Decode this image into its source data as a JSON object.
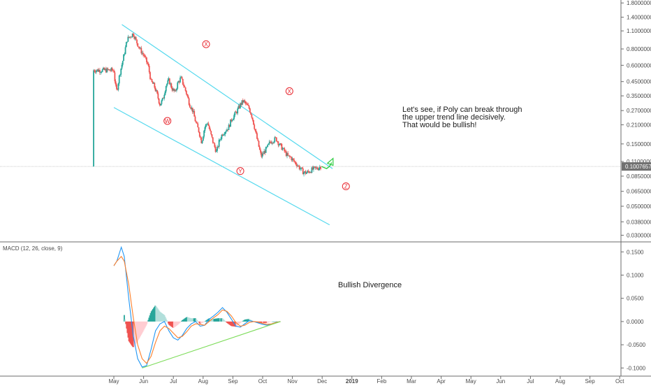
{
  "chart_data": [
    {
      "type": "candlestick",
      "panel": "price",
      "y_scale": "log",
      "ylim": [
        0.027,
        1.85
      ],
      "price_ticks": [
        "1.80000000",
        "1.40000000",
        "1.10000000",
        "0.80000000",
        "0.60000000",
        "0.45000000",
        "0.35000000",
        "0.27000000",
        "0.21000000",
        "0.15000000",
        "0.11000000",
        "0.08500000",
        "0.06500000",
        "0.05000000",
        "0.03800000",
        "0.03000000"
      ],
      "price_tick_values": [
        1.8,
        1.4,
        1.1,
        0.8,
        0.6,
        0.45,
        0.35,
        0.27,
        0.21,
        0.15,
        0.11,
        0.085,
        0.065,
        0.05,
        0.038,
        0.03
      ],
      "last_price": {
        "label": "0.10076572",
        "value": 0.1008
      },
      "months": [
        "May",
        "Jun",
        "Jul",
        "Aug",
        "Sep",
        "Oct",
        "Nov",
        "Dec",
        "2019",
        "Feb",
        "Mar",
        "Apr",
        "May",
        "Jun",
        "Jul",
        "Aug",
        "Sep",
        "Oct"
      ],
      "bullish_color": "#26a69a",
      "bearish_color": "#ef5350",
      "price_path": [
        [
          0.0,
          0.55
        ],
        [
          0.05,
          0.42
        ],
        [
          0.1,
          0.38
        ],
        [
          0.2,
          0.52
        ],
        [
          0.3,
          0.65
        ],
        [
          0.45,
          0.95
        ],
        [
          0.55,
          1.0
        ],
        [
          0.65,
          1.05
        ],
        [
          0.75,
          0.92
        ],
        [
          0.9,
          0.78
        ],
        [
          1.0,
          0.72
        ],
        [
          1.15,
          0.6
        ],
        [
          1.25,
          0.45
        ],
        [
          1.35,
          0.42
        ],
        [
          1.45,
          0.36
        ],
        [
          1.55,
          0.3
        ],
        [
          1.65,
          0.33
        ],
        [
          1.75,
          0.42
        ],
        [
          1.85,
          0.46
        ],
        [
          1.95,
          0.4
        ],
        [
          2.05,
          0.37
        ],
        [
          2.15,
          0.44
        ],
        [
          2.25,
          0.48
        ],
        [
          2.35,
          0.42
        ],
        [
          2.45,
          0.36
        ],
        [
          2.55,
          0.3
        ],
        [
          2.65,
          0.27
        ],
        [
          2.75,
          0.22
        ],
        [
          2.85,
          0.19
        ],
        [
          2.95,
          0.155
        ],
        [
          3.05,
          0.2
        ],
        [
          3.15,
          0.22
        ],
        [
          3.25,
          0.18
        ],
        [
          3.35,
          0.15
        ],
        [
          3.45,
          0.13
        ],
        [
          3.55,
          0.16
        ],
        [
          3.65,
          0.18
        ],
        [
          3.75,
          0.19
        ],
        [
          3.85,
          0.2
        ],
        [
          3.95,
          0.23
        ],
        [
          4.05,
          0.25
        ],
        [
          4.15,
          0.27
        ],
        [
          4.25,
          0.3
        ],
        [
          4.35,
          0.32
        ],
        [
          4.45,
          0.3
        ],
        [
          4.55,
          0.28
        ],
        [
          4.65,
          0.24
        ],
        [
          4.75,
          0.19
        ],
        [
          4.85,
          0.15
        ],
        [
          4.95,
          0.12
        ],
        [
          5.05,
          0.13
        ],
        [
          5.15,
          0.14
        ],
        [
          5.25,
          0.155
        ],
        [
          5.35,
          0.16
        ],
        [
          5.45,
          0.165
        ],
        [
          5.55,
          0.15
        ],
        [
          5.65,
          0.14
        ],
        [
          5.75,
          0.13
        ],
        [
          5.85,
          0.12
        ],
        [
          5.95,
          0.118
        ],
        [
          6.05,
          0.11
        ],
        [
          6.15,
          0.105
        ],
        [
          6.25,
          0.098
        ],
        [
          6.35,
          0.092
        ],
        [
          6.45,
          0.09
        ],
        [
          6.55,
          0.092
        ],
        [
          6.65,
          0.095
        ],
        [
          6.75,
          0.097
        ],
        [
          6.85,
          0.098
        ],
        [
          6.95,
          0.1008
        ]
      ],
      "projection": [
        [
          6.98,
          0.1008
        ],
        [
          7.15,
          0.097
        ],
        [
          7.25,
          0.101
        ],
        [
          7.32,
          0.108
        ]
      ],
      "channel_upper": [
        [
          0.27,
          1.23
        ],
        [
          7.35,
          0.097
        ]
      ],
      "channel_lower": [
        [
          0.0,
          0.285
        ],
        [
          7.25,
          0.036
        ]
      ],
      "wave_labels": [
        {
          "label": "W",
          "x": 1.8,
          "y": 0.225
        },
        {
          "label": "X",
          "x": 3.1,
          "y": 0.87
        },
        {
          "label": "Y",
          "x": 4.25,
          "y": 0.093
        },
        {
          "label": "X",
          "x": 5.9,
          "y": 0.38
        },
        {
          "label": "Z",
          "x": 7.8,
          "y": 0.071
        }
      ],
      "annotation": [
        "Let's see, if Poly can break through",
        "the upper trend line decisively.",
        "That would be bullish!"
      ]
    },
    {
      "type": "line",
      "panel": "indicator",
      "title": "MACD (12, 26, close, 9)",
      "ylim": [
        -0.11,
        0.17
      ],
      "y_ticks": [
        "0.1500",
        "0.1000",
        "0.0500",
        "0.0000",
        "-0.0500",
        "-0.1000"
      ],
      "y_tick_values": [
        0.15,
        0.1,
        0.05,
        0,
        -0.05,
        -0.1
      ],
      "series": [
        {
          "color": "#2196f3",
          "values": [
            [
              0.0,
              0.12
            ],
            [
              0.1,
              0.13
            ],
            [
              0.25,
              0.16
            ],
            [
              0.35,
              0.14
            ],
            [
              0.5,
              0.05
            ],
            [
              0.65,
              -0.03
            ],
            [
              0.8,
              -0.08
            ],
            [
              0.95,
              -0.098
            ],
            [
              1.1,
              -0.095
            ],
            [
              1.25,
              -0.06
            ],
            [
              1.4,
              -0.02
            ],
            [
              1.55,
              -0.005
            ],
            [
              1.7,
              0.0
            ],
            [
              1.85,
              -0.02
            ],
            [
              2.0,
              -0.035
            ],
            [
              2.15,
              -0.04
            ],
            [
              2.3,
              -0.03
            ],
            [
              2.45,
              -0.015
            ],
            [
              2.6,
              -0.005
            ],
            [
              2.75,
              0.0
            ],
            [
              2.9,
              -0.01
            ],
            [
              3.05,
              -0.008
            ],
            [
              3.2,
              0.005
            ],
            [
              3.35,
              0.012
            ],
            [
              3.5,
              0.02
            ],
            [
              3.65,
              0.03
            ],
            [
              3.8,
              0.02
            ],
            [
              3.95,
              0.005
            ],
            [
              4.1,
              -0.01
            ],
            [
              4.25,
              -0.012
            ],
            [
              4.4,
              -0.005
            ],
            [
              4.55,
              0.002
            ],
            [
              4.7,
              0.0
            ],
            [
              4.85,
              -0.003
            ],
            [
              5.0,
              -0.006
            ],
            [
              5.15,
              -0.008
            ],
            [
              5.3,
              -0.005
            ],
            [
              5.45,
              -0.002
            ],
            [
              5.6,
              0.0
            ]
          ]
        },
        {
          "color": "#ff7f2a",
          "values": [
            [
              0.0,
              0.12
            ],
            [
              0.1,
              0.13
            ],
            [
              0.25,
              0.14
            ],
            [
              0.35,
              0.13
            ],
            [
              0.5,
              0.08
            ],
            [
              0.65,
              0.01
            ],
            [
              0.8,
              -0.05
            ],
            [
              0.95,
              -0.08
            ],
            [
              1.1,
              -0.09
            ],
            [
              1.25,
              -0.075
            ],
            [
              1.4,
              -0.045
            ],
            [
              1.55,
              -0.02
            ],
            [
              1.7,
              -0.01
            ],
            [
              1.85,
              -0.015
            ],
            [
              2.0,
              -0.025
            ],
            [
              2.15,
              -0.035
            ],
            [
              2.3,
              -0.032
            ],
            [
              2.45,
              -0.022
            ],
            [
              2.6,
              -0.01
            ],
            [
              2.75,
              -0.005
            ],
            [
              2.9,
              -0.006
            ],
            [
              3.05,
              -0.008
            ],
            [
              3.2,
              0.0
            ],
            [
              3.35,
              0.008
            ],
            [
              3.5,
              0.015
            ],
            [
              3.65,
              0.025
            ],
            [
              3.8,
              0.022
            ],
            [
              3.95,
              0.012
            ],
            [
              4.1,
              -0.002
            ],
            [
              4.25,
              -0.01
            ],
            [
              4.4,
              -0.008
            ],
            [
              4.55,
              -0.002
            ],
            [
              4.7,
              0.0
            ],
            [
              4.85,
              -0.001
            ],
            [
              5.0,
              -0.004
            ],
            [
              5.15,
              -0.006
            ],
            [
              5.3,
              -0.005
            ],
            [
              5.45,
              -0.002
            ],
            [
              5.6,
              0.0
            ]
          ]
        }
      ],
      "divergence_line": [
        [
          0.95,
          -0.1
        ],
        [
          5.6,
          0.0
        ]
      ],
      "annotation": "Bullish Divergence"
    }
  ]
}
